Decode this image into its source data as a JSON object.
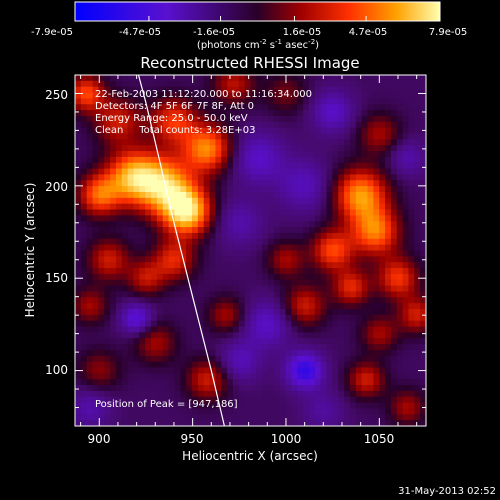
{
  "chart_data": {
    "type": "heatmap",
    "title": "Reconstructed RHESSI Image",
    "xlabel": "Heliocentric X (arcsec)",
    "ylabel": "Heliocentric Y (arcsec)",
    "xlim": [
      887,
      1075
    ],
    "ylim": [
      70,
      260
    ],
    "xticks": [
      900,
      950,
      1000,
      1050
    ],
    "yticks": [
      100,
      150,
      200,
      250
    ],
    "colorbar": {
      "min": -7.9e-05,
      "max": 7.9e-05,
      "tick_labels": [
        "-7.9e-05",
        "-4.7e-05",
        "-1.6e-05",
        "1.6e-05",
        "4.7e-05",
        "7.9e-05"
      ],
      "unit_main": "(photons cm",
      "unit_exp1": "-2",
      "unit_mid": " s",
      "unit_exp2": "-1",
      "unit_end": " asec",
      "unit_exp3": "-2",
      "unit_close": ")"
    },
    "annotations": [
      "22-Feb-2003 11:12:20.000 to 11:16:34.000",
      "Detectors: 4F 5F 6F 7F 8F, Att 0",
      "Energy Range: 25.0 - 50.0 keV",
      "Clean     Total counts: 3.28E+03"
    ],
    "peak_label": "Position of Peak = [947,186]",
    "peak": [
      947,
      186
    ],
    "limb": [
      [
        967,
        70
      ],
      [
        960,
        100
      ],
      [
        950,
        140
      ],
      [
        940,
        180
      ],
      [
        932,
        215
      ],
      [
        925,
        245
      ],
      [
        921,
        260
      ]
    ],
    "blobs": [
      {
        "x": 947,
        "y": 186,
        "v": 1.0,
        "s": 9
      },
      {
        "x": 935,
        "y": 200,
        "v": 0.85,
        "s": 11
      },
      {
        "x": 918,
        "y": 205,
        "v": 0.8,
        "s": 10
      },
      {
        "x": 900,
        "y": 195,
        "v": 0.65,
        "s": 8
      },
      {
        "x": 958,
        "y": 220,
        "v": 0.75,
        "s": 9
      },
      {
        "x": 940,
        "y": 235,
        "v": 0.55,
        "s": 9
      },
      {
        "x": 910,
        "y": 235,
        "v": 0.45,
        "s": 9
      },
      {
        "x": 893,
        "y": 250,
        "v": 0.6,
        "s": 7
      },
      {
        "x": 972,
        "y": 255,
        "v": 0.4,
        "s": 8
      },
      {
        "x": 940,
        "y": 160,
        "v": 0.5,
        "s": 8
      },
      {
        "x": 905,
        "y": 160,
        "v": 0.45,
        "s": 8
      },
      {
        "x": 925,
        "y": 150,
        "v": 0.4,
        "s": 7
      },
      {
        "x": 895,
        "y": 135,
        "v": 0.35,
        "s": 7
      },
      {
        "x": 930,
        "y": 115,
        "v": 0.35,
        "s": 8
      },
      {
        "x": 900,
        "y": 100,
        "v": 0.3,
        "s": 8
      },
      {
        "x": 958,
        "y": 95,
        "v": 0.45,
        "s": 8
      },
      {
        "x": 968,
        "y": 130,
        "v": 0.35,
        "s": 7
      },
      {
        "x": 1040,
        "y": 195,
        "v": 0.8,
        "s": 10
      },
      {
        "x": 1048,
        "y": 175,
        "v": 0.7,
        "s": 9
      },
      {
        "x": 1025,
        "y": 165,
        "v": 0.6,
        "s": 8
      },
      {
        "x": 1060,
        "y": 150,
        "v": 0.55,
        "s": 8
      },
      {
        "x": 1035,
        "y": 145,
        "v": 0.5,
        "s": 7
      },
      {
        "x": 1010,
        "y": 135,
        "v": 0.45,
        "s": 8
      },
      {
        "x": 1000,
        "y": 160,
        "v": 0.35,
        "s": 7
      },
      {
        "x": 1070,
        "y": 130,
        "v": 0.45,
        "s": 7
      },
      {
        "x": 1050,
        "y": 120,
        "v": 0.35,
        "s": 7
      },
      {
        "x": 1043,
        "y": 95,
        "v": 0.45,
        "s": 7
      },
      {
        "x": 1065,
        "y": 80,
        "v": 0.35,
        "s": 7
      },
      {
        "x": 1050,
        "y": 228,
        "v": 0.35,
        "s": 8
      },
      {
        "x": 1000,
        "y": 250,
        "v": 0.25,
        "s": 8
      },
      {
        "x": 985,
        "y": 215,
        "v": -0.35,
        "s": 10
      },
      {
        "x": 1010,
        "y": 200,
        "v": -0.3,
        "s": 10
      },
      {
        "x": 1010,
        "y": 100,
        "v": -0.6,
        "s": 7
      },
      {
        "x": 990,
        "y": 125,
        "v": -0.35,
        "s": 9
      },
      {
        "x": 975,
        "y": 105,
        "v": -0.3,
        "s": 8
      },
      {
        "x": 920,
        "y": 128,
        "v": -0.45,
        "s": 6
      },
      {
        "x": 1025,
        "y": 240,
        "v": -0.35,
        "s": 8
      },
      {
        "x": 1065,
        "y": 215,
        "v": -0.25,
        "s": 7
      },
      {
        "x": 975,
        "y": 180,
        "v": -0.25,
        "s": 9
      },
      {
        "x": 895,
        "y": 80,
        "v": -0.25,
        "s": 8
      },
      {
        "x": 1020,
        "y": 78,
        "v": -0.2,
        "s": 8
      }
    ]
  },
  "footer_date": "31-May-2013 02:52"
}
